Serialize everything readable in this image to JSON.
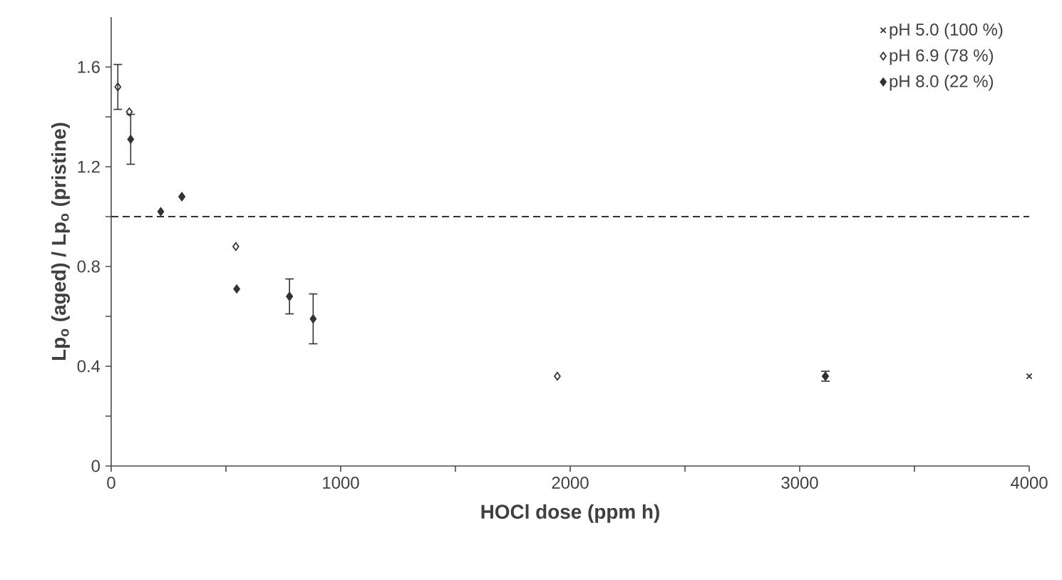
{
  "chart_data": {
    "type": "scatter",
    "xlabel": "HOCl dose (ppm h)",
    "ylabel": "Lp$_{o}$ (aged) / Lp$_{o}$ (pristine)",
    "xlim": [
      0,
      4000
    ],
    "ylim": [
      0,
      1.8
    ],
    "xticks": [
      0,
      {
        "value": 500,
        "label": null
      },
      1000,
      {
        "value": 1500,
        "label": null
      },
      2000,
      {
        "value": 2500,
        "label": null
      },
      3000,
      {
        "value": 3500,
        "label": null
      },
      4000
    ],
    "yticks": [
      0,
      {
        "value": 0.2,
        "label": null
      },
      0.4,
      {
        "value": 0.6,
        "label": null
      },
      0.8,
      {
        "value": 1.0,
        "label": null
      },
      1.2,
      {
        "value": 1.4,
        "label": null
      },
      1.6
    ],
    "grid": false,
    "legend": "top right",
    "ref_lines": [
      {
        "axis": "y",
        "value": 1.0,
        "line_style": "dashed"
      }
    ],
    "series": [
      {
        "name": "pH 5.0 (100 %)",
        "color": "#333333",
        "marker": "cross",
        "x": [
          4000
        ],
        "values": [
          0.36
        ]
      },
      {
        "name": "pH 6.9 (78 %)",
        "color": "#333333",
        "marker": "diamond",
        "x": [
          29,
          79,
          308,
          543,
          777,
          1944,
          3112
        ],
        "values": [
          1.52,
          1.42,
          1.08,
          0.88,
          0.68,
          0.36,
          0.36
        ],
        "errors": [
          0.09,
          null,
          null,
          null,
          null,
          null,
          null
        ]
      },
      {
        "name": "pH 8.0 (22 %)",
        "color": "#333333",
        "marker": "diamond*",
        "x": [
          85,
          216,
          308,
          547,
          777,
          880,
          3112
        ],
        "values": [
          1.31,
          1.02,
          1.08,
          0.71,
          0.68,
          0.59,
          0.36
        ],
        "errors": [
          0.1,
          null,
          null,
          null,
          0.07,
          0.1,
          0.02
        ]
      }
    ]
  }
}
